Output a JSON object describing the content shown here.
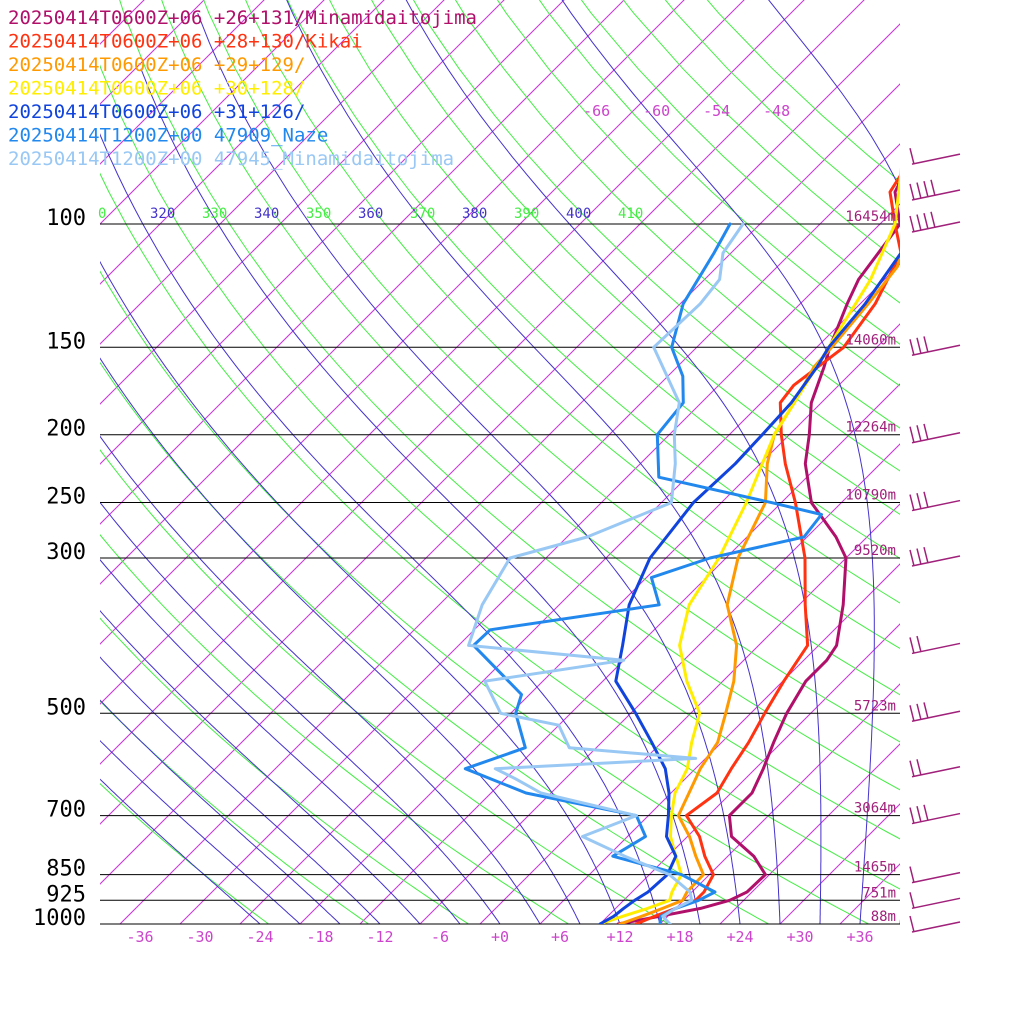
{
  "chart_data": {
    "type": "line",
    "chart_kind": "skew-t log-p sounding",
    "axes": {
      "pressure_range_hpa": [
        1000,
        100
      ],
      "pressure_scale": "log",
      "temperature_range_c_at_1000": [
        -40,
        40
      ],
      "pressure_ticks": [
        "100",
        "150",
        "200",
        "250",
        "300",
        "500",
        "700",
        "850",
        "925",
        "1000"
      ],
      "temperature_ticks": [
        "-36",
        "-30",
        "-24",
        "-18",
        "-12",
        "-6",
        "+0",
        "+6",
        "+12",
        "+18",
        "+24",
        "+30",
        "+36"
      ],
      "upper_isotherm_labels": [
        "-66",
        "-60",
        "-54",
        "-48"
      ],
      "theta_labels": [
        "0",
        "320",
        "330",
        "340",
        "350",
        "360",
        "370",
        "380",
        "390",
        "400",
        "410"
      ],
      "heights": [
        {
          "p": 100,
          "label": "16454m"
        },
        {
          "p": 150,
          "label": "14060m"
        },
        {
          "p": 200,
          "label": "12264m"
        },
        {
          "p": 250,
          "label": "10790m"
        },
        {
          "p": 300,
          "label": "9520m"
        },
        {
          "p": 500,
          "label": "5723m"
        },
        {
          "p": 700,
          "label": "3064m"
        },
        {
          "p": 850,
          "label": "1465m"
        },
        {
          "p": 925,
          "label": "751m"
        },
        {
          "p": 1000,
          "label": "88m"
        }
      ]
    },
    "grid": {
      "isotherms": true,
      "dry_adiabats": true,
      "moist_adiabats": true,
      "isobars": true
    },
    "colors": {
      "isotherm": "#cc33dd",
      "dry_adiabat": "#44ee44",
      "moist_adiabat": "#4433cc",
      "isobar": "#000000",
      "temperature_tick": "#cc44cc",
      "height_label": "#a0207a",
      "theta_label_a": "#4433cc",
      "theta_label_b": "#44ee44",
      "barb": "#a0207a"
    },
    "legend_placement": "top-left",
    "series": [
      {
        "name": "20250414T0600Z+06 +26+131/Minamidaitojima",
        "color": "#b0106a",
        "points": [
          [
            1000,
            11.8
          ],
          [
            975,
            15.2
          ],
          [
            950,
            18.5
          ],
          [
            925,
            20.6
          ],
          [
            900,
            21.5
          ],
          [
            850,
            21.6
          ],
          [
            800,
            18.6
          ],
          [
            750,
            14.4
          ],
          [
            700,
            12.1
          ],
          [
            650,
            12.1
          ],
          [
            600,
            10.8
          ],
          [
            550,
            9.2
          ],
          [
            500,
            7.6
          ],
          [
            450,
            6.3
          ],
          [
            420,
            6.3
          ],
          [
            400,
            5.8
          ],
          [
            350,
            2.4
          ],
          [
            300,
            -2.0
          ],
          [
            280,
            -5.1
          ],
          [
            250,
            -11.0
          ],
          [
            220,
            -15.5
          ],
          [
            200,
            -18.0
          ],
          [
            180,
            -21.0
          ],
          [
            160,
            -23.3
          ],
          [
            150,
            -24.7
          ],
          [
            130,
            -27.3
          ],
          [
            120,
            -28.6
          ],
          [
            100,
            -30.0
          ],
          [
            90,
            -33.7
          ],
          [
            80,
            -35.5
          ],
          [
            70,
            -30.0
          ]
        ]
      },
      {
        "name": "20250414T0600Z+06 +28+130/Kikai",
        "color": "#ff3311",
        "points": [
          [
            1000,
            13.6
          ],
          [
            975,
            14.7
          ],
          [
            950,
            16.0
          ],
          [
            925,
            17.2
          ],
          [
            900,
            17.2
          ],
          [
            850,
            16.4
          ],
          [
            800,
            13.7
          ],
          [
            750,
            11.2
          ],
          [
            700,
            7.8
          ],
          [
            650,
            8.6
          ],
          [
            600,
            7.6
          ],
          [
            550,
            6.7
          ],
          [
            500,
            5.4
          ],
          [
            450,
            4.1
          ],
          [
            400,
            2.9
          ],
          [
            350,
            -1.4
          ],
          [
            300,
            -6.1
          ],
          [
            250,
            -12.6
          ],
          [
            220,
            -17.5
          ],
          [
            200,
            -20.8
          ],
          [
            180,
            -24.1
          ],
          [
            170,
            -24.5
          ],
          [
            150,
            -23.3
          ],
          [
            130,
            -24.5
          ],
          [
            110,
            -27.0
          ],
          [
            100,
            -30.5
          ],
          [
            90,
            -34.2
          ],
          [
            80,
            -35.5
          ]
        ]
      },
      {
        "name": "20250414T0600Z+06 +29+129/",
        "color": "#ff9900",
        "points": [
          [
            1000,
            12.0
          ],
          [
            975,
            13.4
          ],
          [
            950,
            14.7
          ],
          [
            925,
            15.9
          ],
          [
            900,
            15.5
          ],
          [
            850,
            15.4
          ],
          [
            800,
            12.8
          ],
          [
            750,
            10.2
          ],
          [
            700,
            7.0
          ],
          [
            650,
            5.8
          ],
          [
            600,
            4.5
          ],
          [
            550,
            3.6
          ],
          [
            500,
            1.5
          ],
          [
            450,
            -0.9
          ],
          [
            400,
            -4.2
          ],
          [
            350,
            -9.2
          ],
          [
            300,
            -12.8
          ],
          [
            250,
            -15.6
          ],
          [
            220,
            -19.3
          ],
          [
            200,
            -21.5
          ],
          [
            180,
            -22.7
          ],
          [
            160,
            -24.3
          ],
          [
            150,
            -24.5
          ],
          [
            130,
            -25.2
          ],
          [
            115,
            -26.0
          ],
          [
            100,
            -29.0
          ],
          [
            80,
            -34.5
          ]
        ]
      },
      {
        "name": "20250414T0600Z+06 +30+128/",
        "color": "#ffee00",
        "points": [
          [
            1000,
            10.0
          ],
          [
            975,
            11.5
          ],
          [
            950,
            13.2
          ],
          [
            925,
            14.6
          ],
          [
            900,
            14.0
          ],
          [
            850,
            13.2
          ],
          [
            800,
            10.8
          ],
          [
            750,
            8.3
          ],
          [
            700,
            6.3
          ],
          [
            650,
            4.4
          ],
          [
            600,
            3.2
          ],
          [
            550,
            1.0
          ],
          [
            500,
            -1.1
          ],
          [
            450,
            -5.6
          ],
          [
            400,
            -9.9
          ],
          [
            350,
            -13.0
          ],
          [
            300,
            -14.7
          ],
          [
            250,
            -17.5
          ],
          [
            220,
            -19.8
          ],
          [
            200,
            -21.5
          ],
          [
            150,
            -24.8
          ],
          [
            120,
            -27.4
          ],
          [
            100,
            -30.5
          ],
          [
            80,
            -36.5
          ]
        ]
      },
      {
        "name": "20250414T0600Z+06 +31+126/",
        "color": "#1144dd",
        "points": [
          [
            1000,
            10.0
          ],
          [
            975,
            10.6
          ],
          [
            950,
            10.8
          ],
          [
            925,
            11.1
          ],
          [
            900,
            11.6
          ],
          [
            850,
            11.8
          ],
          [
            800,
            10.8
          ],
          [
            750,
            7.9
          ],
          [
            700,
            6.0
          ],
          [
            650,
            3.8
          ],
          [
            600,
            1.0
          ],
          [
            550,
            -3.0
          ],
          [
            500,
            -7.5
          ],
          [
            450,
            -12.7
          ],
          [
            400,
            -15.6
          ],
          [
            350,
            -19.0
          ],
          [
            300,
            -21.6
          ],
          [
            250,
            -22.8
          ],
          [
            220,
            -22.5
          ],
          [
            200,
            -22.7
          ],
          [
            180,
            -23.0
          ],
          [
            160,
            -24.0
          ],
          [
            150,
            -24.8
          ],
          [
            130,
            -25.5
          ],
          [
            110,
            -27.0
          ],
          [
            100,
            -28.5
          ],
          [
            80,
            -35.3
          ],
          [
            70,
            -38.0
          ]
        ]
      },
      {
        "name": "20250414T1200Z+00 47909_Naze",
        "color": "#2288ee",
        "points": [
          [
            1000,
            16.0
          ],
          [
            975,
            15.3
          ],
          [
            950,
            16.0
          ],
          [
            925,
            17.5
          ],
          [
            900,
            18.3
          ],
          [
            850,
            13.2
          ],
          [
            800,
            4.5
          ],
          [
            750,
            5.8
          ],
          [
            700,
            2.8
          ],
          [
            650,
            -10.5
          ],
          [
            600,
            -19.0
          ],
          [
            560,
            -15.1
          ],
          [
            500,
            -19.5
          ],
          [
            470,
            -20.8
          ],
          [
            400,
            -30.5
          ],
          [
            380,
            -30.4
          ],
          [
            350,
            -16.0
          ],
          [
            320,
            -19.5
          ],
          [
            300,
            -15.6
          ],
          [
            280,
            -8.3
          ],
          [
            260,
            -8.8
          ],
          [
            250,
            -15.0
          ],
          [
            230,
            -28.8
          ],
          [
            200,
            -33.2
          ],
          [
            180,
            -33.8
          ],
          [
            165,
            -36.5
          ],
          [
            150,
            -40.5
          ],
          [
            130,
            -43.7
          ],
          [
            110,
            -45.7
          ],
          [
            100,
            -47.0
          ]
        ]
      },
      {
        "name": "20250414T1200Z+00 47945_Minamidaitojima",
        "color": "#99c8f4",
        "points": [
          [
            1000,
            17.0
          ],
          [
            975,
            15.5
          ],
          [
            950,
            16.0
          ],
          [
            925,
            16.8
          ],
          [
            900,
            15.8
          ],
          [
            850,
            12.0
          ],
          [
            800,
            5.7
          ],
          [
            750,
            -0.5
          ],
          [
            700,
            2.8
          ],
          [
            650,
            -9.0
          ],
          [
            620,
            -13.0
          ],
          [
            600,
            -16.0
          ],
          [
            580,
            3.0
          ],
          [
            560,
            -10.7
          ],
          [
            520,
            -14.0
          ],
          [
            500,
            -21.0
          ],
          [
            450,
            -25.8
          ],
          [
            420,
            -14.0
          ],
          [
            400,
            -31.0
          ],
          [
            350,
            -33.7
          ],
          [
            300,
            -35.6
          ],
          [
            280,
            -30.0
          ],
          [
            250,
            -25.0
          ],
          [
            220,
            -28.5
          ],
          [
            200,
            -31.5
          ],
          [
            180,
            -34.2
          ],
          [
            150,
            -42.3
          ],
          [
            130,
            -42.0
          ],
          [
            120,
            -42.5
          ],
          [
            110,
            -44.8
          ],
          [
            100,
            -45.7
          ]
        ]
      }
    ],
    "wind_barbs": [
      {
        "p": 80,
        "barbs": 1
      },
      {
        "p": 90,
        "barbs": 4
      },
      {
        "p": 100,
        "barbs": 4
      },
      {
        "p": 150,
        "barbs": 3
      },
      {
        "p": 200,
        "barbs": 3
      },
      {
        "p": 250,
        "barbs": 3
      },
      {
        "p": 300,
        "barbs": 3
      },
      {
        "p": 400,
        "barbs": 2
      },
      {
        "p": 500,
        "barbs": 3
      },
      {
        "p": 600,
        "barbs": 2
      },
      {
        "p": 700,
        "barbs": 3
      },
      {
        "p": 850,
        "barbs": 1
      },
      {
        "p": 925,
        "barbs": 1
      },
      {
        "p": 1000,
        "barbs": 1
      }
    ]
  }
}
